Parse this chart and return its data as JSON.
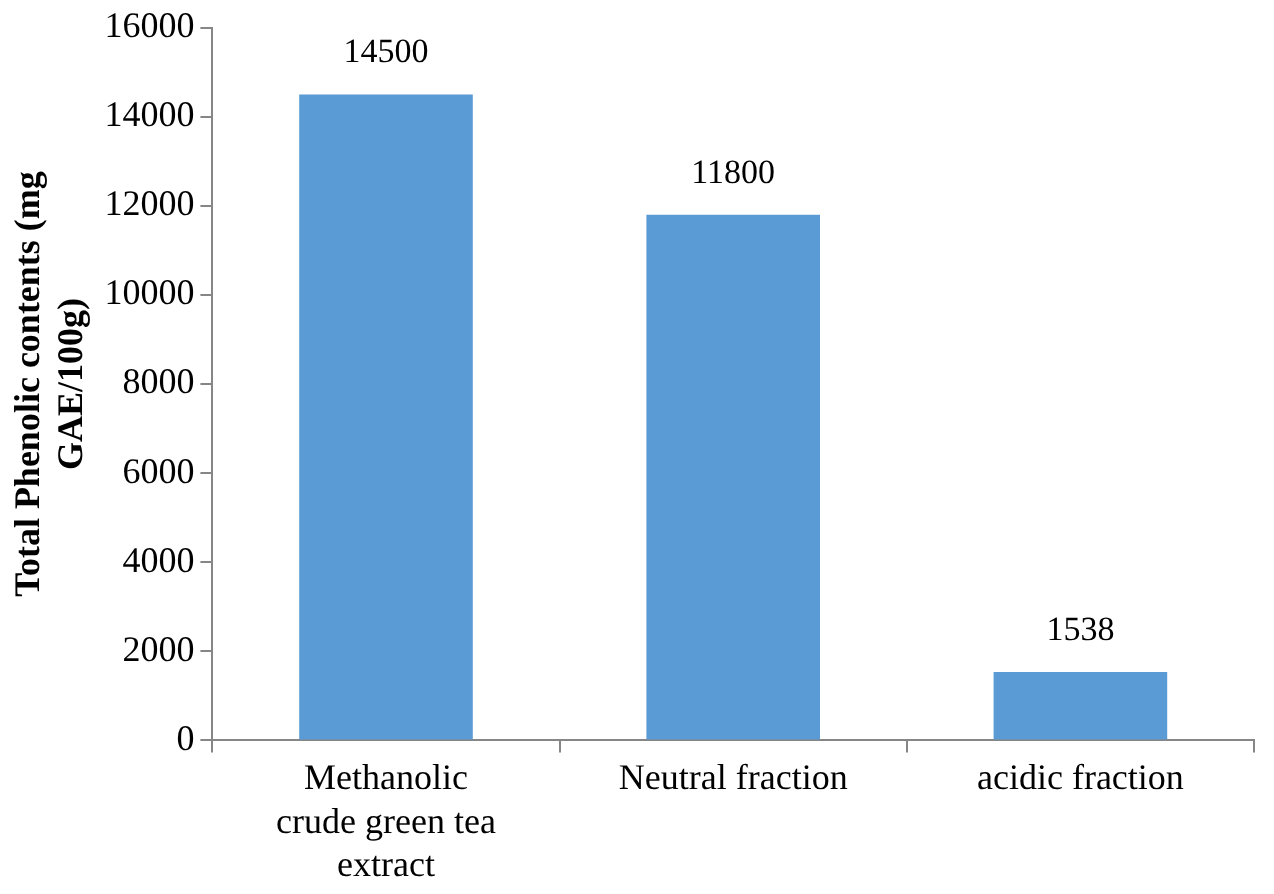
{
  "chart_data": {
    "type": "bar",
    "ylabel": "Total Phenolic contents (mg GAE/100g)",
    "categories": [
      "Methanolic crude green tea extract",
      "Neutral fraction",
      "acidic fraction"
    ],
    "values": [
      14500,
      11800,
      1538
    ],
    "color": "#5b9bd5",
    "ylim": [
      0,
      16000
    ],
    "yticks": [
      0,
      2000,
      4000,
      6000,
      8000,
      10000,
      12000,
      14000,
      16000
    ],
    "grid": false,
    "legend": false,
    "data_labels": true
  }
}
